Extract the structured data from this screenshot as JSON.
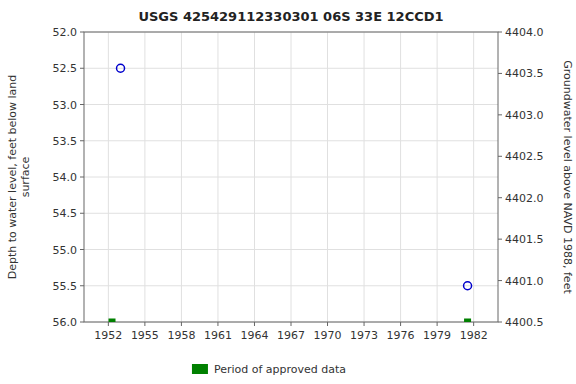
{
  "chart_data": {
    "type": "scatter",
    "title": "USGS 425429112330301 06S 33E 12CCD1",
    "y_label": "Depth to water level, feet below land\nsurface",
    "y2_label": "Groundwater level above NAVD 1988, feet",
    "series": [
      {
        "x": [
          1953.0,
          1981.5
        ],
        "values": [
          52.5,
          55.5
        ],
        "color": "#0000cc",
        "marker": "circle"
      },
      {
        "name": "Period of approved data",
        "x": [
          1952.3,
          1981.5
        ],
        "values": [
          56.0,
          56.0
        ],
        "color": "#008000",
        "marker": "square"
      }
    ],
    "xlim": [
      1950.0,
      1984.0
    ],
    "xticks": [
      1952,
      1955,
      1958,
      1961,
      1964,
      1967,
      1970,
      1973,
      1976,
      1979,
      1982
    ],
    "ylim": [
      56.0,
      52.0
    ],
    "yticks": [
      {
        "value": 52.0,
        "label": "52.0"
      },
      52.5,
      {
        "value": 53.0,
        "label": "53.0"
      },
      53.5,
      {
        "value": 54.0,
        "label": "54.0"
      },
      54.5,
      {
        "value": 55.0,
        "label": "55.0"
      },
      55.5,
      {
        "value": 56.0,
        "label": "56.0"
      }
    ],
    "y2lim": [
      4400.5,
      4404.0
    ],
    "y2ticks": [
      4400.5,
      {
        "value": 4401.0,
        "label": "4401.0"
      },
      4401.5,
      {
        "value": 4402.0,
        "label": "4402.0"
      },
      4402.5,
      {
        "value": 4403.0,
        "label": "4403.0"
      },
      4403.5,
      {
        "value": 4404.0,
        "label": "4404.0"
      }
    ],
    "grid": true,
    "legend": "bottom"
  }
}
